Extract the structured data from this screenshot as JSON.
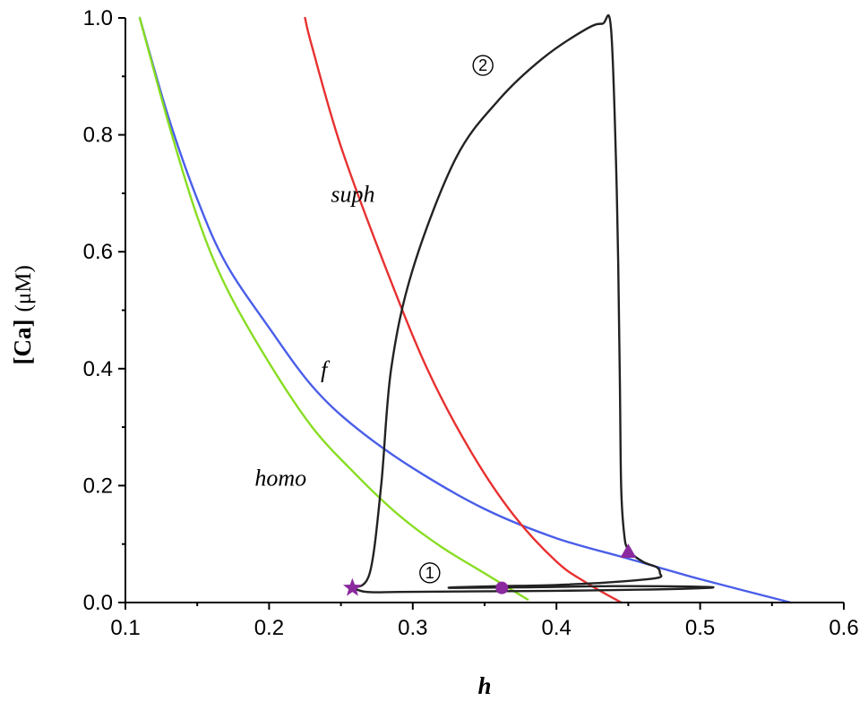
{
  "chart_data": {
    "type": "line",
    "xlabel": "h",
    "ylabel": "[Ca]",
    "ylabel_unit": "(μM)",
    "xlim": [
      0.1,
      0.6
    ],
    "ylim": [
      0.0,
      1.0
    ],
    "xticks": [
      0.1,
      0.2,
      0.3,
      0.4,
      0.5,
      0.6
    ],
    "xtick_labels": [
      "0.1",
      "0.2",
      "0.3",
      "0.4",
      "0.5",
      "0.6"
    ],
    "yticks": [
      0.0,
      0.2,
      0.4,
      0.6,
      0.8,
      1.0
    ],
    "ytick_labels": [
      "0.0",
      "0.2",
      "0.4",
      "0.6",
      "0.8",
      "1.0"
    ],
    "grid": false,
    "series": [
      {
        "name": "f",
        "color": "#4a5ee8",
        "x": [
          0.11,
          0.13,
          0.15,
          0.17,
          0.2,
          0.23,
          0.26,
          0.3,
          0.35,
          0.4,
          0.45,
          0.5,
          0.563
        ],
        "y": [
          1.0,
          0.83,
          0.69,
          0.58,
          0.47,
          0.37,
          0.3,
          0.23,
          0.16,
          0.11,
          0.075,
          0.04,
          0.0
        ]
      },
      {
        "name": "homo",
        "color": "#88dd22",
        "x": [
          0.11,
          0.13,
          0.15,
          0.17,
          0.2,
          0.23,
          0.26,
          0.29,
          0.32,
          0.35,
          0.38
        ],
        "y": [
          1.0,
          0.82,
          0.66,
          0.54,
          0.41,
          0.3,
          0.22,
          0.15,
          0.095,
          0.05,
          0.005
        ]
      },
      {
        "name": "suph",
        "color": "#e83030",
        "x": [
          0.225,
          0.23,
          0.25,
          0.28,
          0.31,
          0.34,
          0.37,
          0.4,
          0.42,
          0.445
        ],
        "y": [
          1.0,
          0.95,
          0.78,
          0.58,
          0.4,
          0.26,
          0.15,
          0.07,
          0.035,
          0.0
        ]
      },
      {
        "name": "trajectory",
        "color": "#222222",
        "x": [
          0.258,
          0.27,
          0.278,
          0.285,
          0.3,
          0.33,
          0.36,
          0.39,
          0.42,
          0.432,
          0.438,
          0.442,
          0.444,
          0.445,
          0.447,
          0.45,
          0.46,
          0.47,
          0.472,
          0.47,
          0.44,
          0.4,
          0.36,
          0.33,
          0.33,
          0.38,
          0.44,
          0.5,
          0.505,
          0.46,
          0.4,
          0.34,
          0.29,
          0.268,
          0.258
        ],
        "y": [
          0.025,
          0.05,
          0.2,
          0.4,
          0.57,
          0.76,
          0.86,
          0.93,
          0.98,
          0.99,
          0.98,
          0.7,
          0.4,
          0.2,
          0.12,
          0.09,
          0.07,
          0.06,
          0.05,
          0.042,
          0.035,
          0.03,
          0.028,
          0.026,
          0.025,
          0.026,
          0.028,
          0.027,
          0.025,
          0.022,
          0.02,
          0.019,
          0.018,
          0.018,
          0.025
        ]
      }
    ],
    "markers": [
      {
        "shape": "star",
        "x": 0.258,
        "y": 0.025,
        "color": "#8a2a9e"
      },
      {
        "shape": "circle",
        "x": 0.362,
        "y": 0.025,
        "color": "#8a2a9e"
      },
      {
        "shape": "triangle",
        "x": 0.45,
        "y": 0.087,
        "color": "#8a2a9e"
      }
    ],
    "annotations": [
      {
        "text": "suph",
        "x": 0.243,
        "y": 0.685
      },
      {
        "text": "f",
        "x": 0.236,
        "y": 0.385
      },
      {
        "text": "homo",
        "x": 0.19,
        "y": 0.2
      },
      {
        "text": "②",
        "x": 0.342,
        "y": 0.905
      },
      {
        "text": "①",
        "x": 0.305,
        "y": 0.037
      }
    ]
  }
}
